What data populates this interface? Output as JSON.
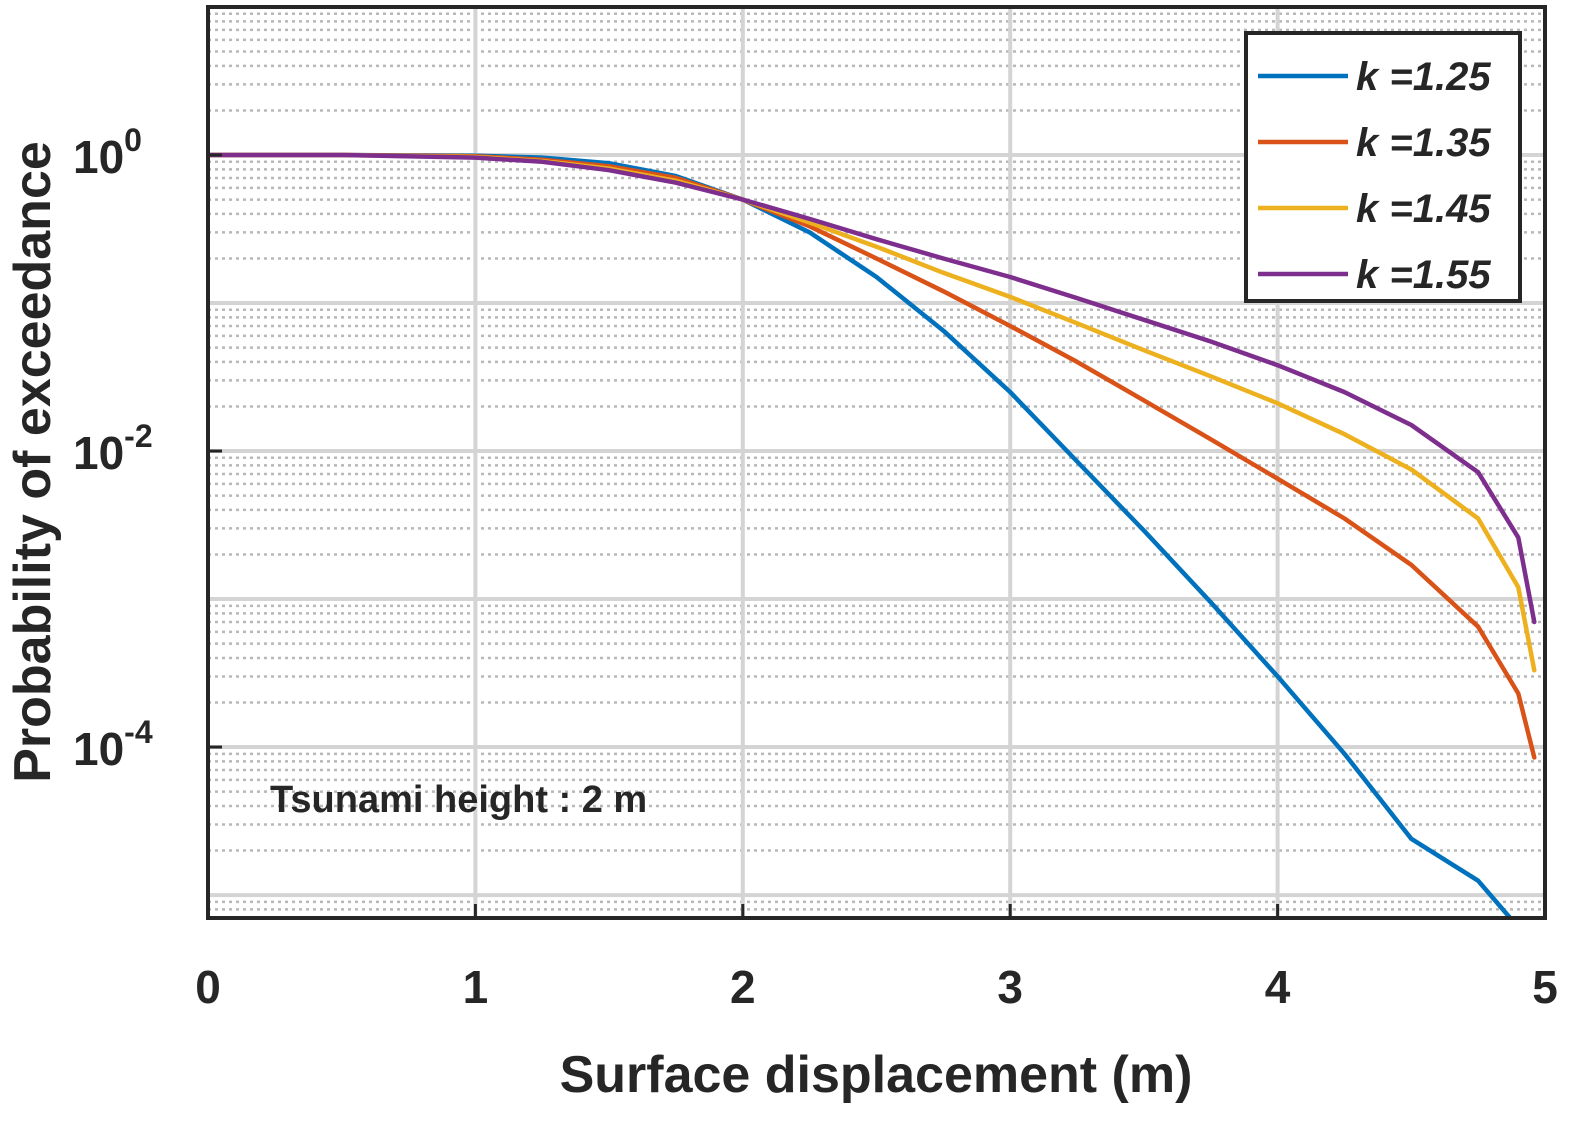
{
  "chart_data": {
    "type": "line",
    "title": "",
    "xlabel": "Surface displacement (m)",
    "ylabel": "Probability of exceedance",
    "xlim": [
      0,
      5
    ],
    "ylim": [
      7e-06,
      10
    ],
    "yscale": "log",
    "grid": true,
    "legend_position": "top-right",
    "x_ticks": [
      {
        "value": 0,
        "label": "0"
      },
      {
        "value": 1,
        "label": "1"
      },
      {
        "value": 2,
        "label": "2"
      },
      {
        "value": 3,
        "label": "3"
      },
      {
        "value": 4,
        "label": "4"
      },
      {
        "value": 5,
        "label": "5"
      }
    ],
    "y_ticks": [
      {
        "value": 1,
        "base": "10",
        "exp": "0"
      },
      {
        "value": 0.01,
        "base": "10",
        "exp": "-2"
      },
      {
        "value": 0.0001,
        "base": "10",
        "exp": "-4"
      }
    ],
    "annotation": "Tsunami height : 2 m",
    "series": [
      {
        "name": "k =1.25",
        "color": "#0072BD",
        "x": [
          0,
          0.5,
          1.0,
          1.25,
          1.5,
          1.75,
          2.0,
          2.25,
          2.5,
          2.75,
          3.0,
          3.25,
          3.5,
          3.75,
          4.0,
          4.25,
          4.5,
          4.75,
          4.87
        ],
        "y": [
          1.0,
          1.0,
          0.99,
          0.96,
          0.88,
          0.72,
          0.5,
          0.3,
          0.15,
          0.065,
          0.025,
          0.0085,
          0.0029,
          0.00095,
          0.0003,
          9e-05,
          2.4e-05,
          1.25e-05,
          7e-06
        ]
      },
      {
        "name": "k =1.35",
        "color": "#D95319",
        "x": [
          0,
          0.5,
          1.0,
          1.25,
          1.5,
          1.75,
          2.0,
          2.25,
          2.5,
          2.75,
          3.0,
          3.25,
          3.5,
          3.75,
          4.0,
          4.25,
          4.5,
          4.75,
          4.9,
          4.96
        ],
        "y": [
          1.0,
          1.0,
          0.98,
          0.93,
          0.84,
          0.7,
          0.5,
          0.33,
          0.2,
          0.12,
          0.07,
          0.04,
          0.022,
          0.012,
          0.0065,
          0.0035,
          0.0017,
          0.00065,
          0.00023,
          8.5e-05
        ]
      },
      {
        "name": "k =1.45",
        "color": "#EDB120",
        "x": [
          0,
          0.5,
          1.0,
          1.25,
          1.5,
          1.75,
          2.0,
          2.25,
          2.5,
          2.75,
          3.0,
          3.25,
          3.5,
          3.75,
          4.0,
          4.25,
          4.5,
          4.75,
          4.9,
          4.96
        ],
        "y": [
          1.0,
          1.0,
          0.97,
          0.91,
          0.81,
          0.67,
          0.5,
          0.35,
          0.24,
          0.16,
          0.11,
          0.073,
          0.048,
          0.032,
          0.021,
          0.013,
          0.0075,
          0.0035,
          0.0012,
          0.00033
        ]
      },
      {
        "name": "k =1.55",
        "color": "#7E2F8E",
        "x": [
          0,
          0.5,
          1.0,
          1.25,
          1.5,
          1.75,
          2.0,
          2.25,
          2.5,
          2.75,
          3.0,
          3.25,
          3.5,
          3.75,
          4.0,
          4.25,
          4.5,
          4.75,
          4.9,
          4.96
        ],
        "y": [
          1.0,
          1.0,
          0.96,
          0.9,
          0.79,
          0.65,
          0.5,
          0.37,
          0.27,
          0.2,
          0.15,
          0.108,
          0.077,
          0.055,
          0.038,
          0.025,
          0.015,
          0.0072,
          0.0026,
          0.0007
        ]
      }
    ]
  }
}
